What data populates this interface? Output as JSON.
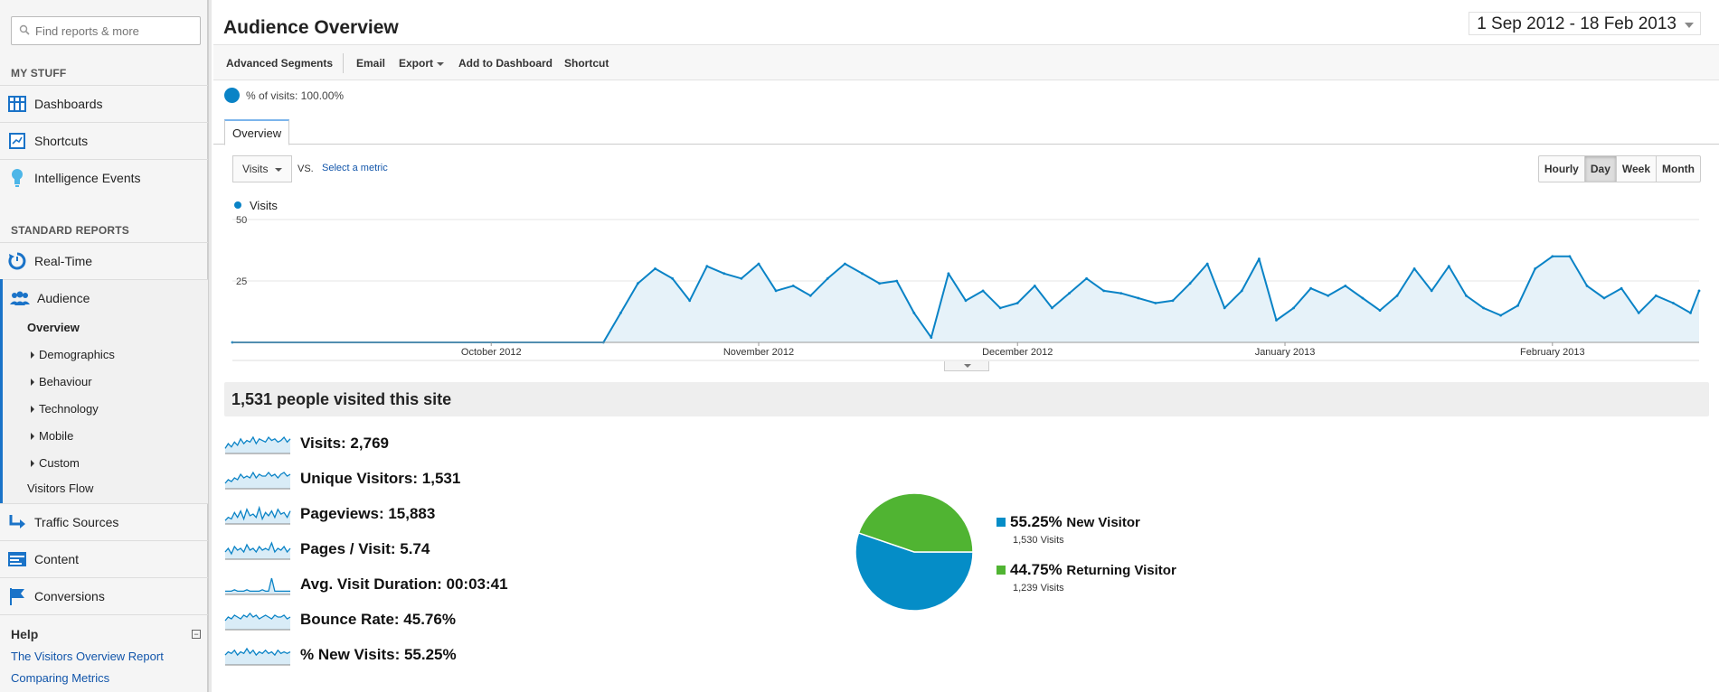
{
  "search": {
    "placeholder": "Find reports & more"
  },
  "sidebar": {
    "my_stuff_heading": "MY STUFF",
    "my_stuff": [
      {
        "label": "Dashboards",
        "icon": "dashboard-grid-icon"
      },
      {
        "label": "Shortcuts",
        "icon": "shortcut-icon"
      },
      {
        "label": "Intelligence Events",
        "icon": "lightbulb-icon"
      }
    ],
    "standard_heading": "STANDARD REPORTS",
    "realtime": {
      "label": "Real-Time",
      "icon": "realtime-clock-icon"
    },
    "audience": {
      "label": "Audience",
      "icon": "audience-people-icon",
      "overview": "Overview",
      "children": [
        "Demographics",
        "Behaviour",
        "Technology",
        "Mobile",
        "Custom"
      ],
      "visitors_flow": "Visitors Flow"
    },
    "traffic_sources": {
      "label": "Traffic Sources",
      "icon": "traffic-arrow-icon"
    },
    "content": {
      "label": "Content",
      "icon": "content-page-icon"
    },
    "conversions": {
      "label": "Conversions",
      "icon": "flag-icon"
    },
    "help": {
      "heading": "Help",
      "toggle": "−",
      "links": [
        "The Visitors Overview Report",
        "Comparing Metrics"
      ]
    }
  },
  "header": {
    "title": "Audience Overview",
    "date_range": "1 Sep 2012 - 18 Feb 2013"
  },
  "toolbar": {
    "advanced_segments": "Advanced Segments",
    "email": "Email",
    "export": "Export",
    "add_to_dashboard": "Add to Dashboard",
    "shortcut": "Shortcut"
  },
  "segment": {
    "label": "% of visits: 100.00%"
  },
  "tabs": {
    "overview": "Overview"
  },
  "controls": {
    "metric": "Visits",
    "vs": "VS.",
    "select_metric": "Select a metric",
    "granularity": [
      "Hourly",
      "Day",
      "Week",
      "Month"
    ],
    "active_granularity": "Day"
  },
  "colors": {
    "line": "#0a83c6",
    "area": "#e6f2f9",
    "new_visitor": "#058dc7",
    "returning_visitor": "#50b432"
  },
  "chart_data": {
    "type": "area",
    "series": [
      {
        "name": "Visits"
      }
    ],
    "yticks": [
      25,
      50
    ],
    "ylim": [
      0,
      50
    ],
    "xlim": [
      "2012-09-01",
      "2013-02-18"
    ],
    "xticks": [
      {
        "date": "2012-10-01",
        "label": "October 2012"
      },
      {
        "date": "2012-11-01",
        "label": "November 2012"
      },
      {
        "date": "2012-12-01",
        "label": "December 2012"
      },
      {
        "date": "2013-01-01",
        "label": "January 2013"
      },
      {
        "date": "2013-02-01",
        "label": "February 2013"
      }
    ],
    "points": [
      [
        "2012-09-01",
        0
      ],
      [
        "2012-10-14",
        0
      ],
      [
        "2012-10-16",
        12
      ],
      [
        "2012-10-18",
        24
      ],
      [
        "2012-10-20",
        30
      ],
      [
        "2012-10-22",
        26
      ],
      [
        "2012-10-24",
        17
      ],
      [
        "2012-10-26",
        31
      ],
      [
        "2012-10-28",
        28
      ],
      [
        "2012-10-30",
        26
      ],
      [
        "2012-11-01",
        32
      ],
      [
        "2012-11-03",
        21
      ],
      [
        "2012-11-05",
        23
      ],
      [
        "2012-11-07",
        19
      ],
      [
        "2012-11-09",
        26
      ],
      [
        "2012-11-11",
        32
      ],
      [
        "2012-11-13",
        28
      ],
      [
        "2012-11-15",
        24
      ],
      [
        "2012-11-17",
        25
      ],
      [
        "2012-11-19",
        12
      ],
      [
        "2012-11-21",
        2
      ],
      [
        "2012-11-23",
        28
      ],
      [
        "2012-11-25",
        17
      ],
      [
        "2012-11-27",
        21
      ],
      [
        "2012-11-29",
        14
      ],
      [
        "2012-12-01",
        16
      ],
      [
        "2012-12-03",
        23
      ],
      [
        "2012-12-05",
        14
      ],
      [
        "2012-12-07",
        20
      ],
      [
        "2012-12-09",
        26
      ],
      [
        "2012-12-11",
        21
      ],
      [
        "2012-12-13",
        20
      ],
      [
        "2012-12-15",
        18
      ],
      [
        "2012-12-17",
        16
      ],
      [
        "2012-12-19",
        17
      ],
      [
        "2012-12-21",
        24
      ],
      [
        "2012-12-23",
        32
      ],
      [
        "2012-12-25",
        14
      ],
      [
        "2012-12-27",
        21
      ],
      [
        "2012-12-29",
        34
      ],
      [
        "2012-12-31",
        9
      ],
      [
        "2013-01-02",
        14
      ],
      [
        "2013-01-04",
        22
      ],
      [
        "2013-01-06",
        19
      ],
      [
        "2013-01-08",
        23
      ],
      [
        "2013-01-10",
        18
      ],
      [
        "2013-01-12",
        13
      ],
      [
        "2013-01-14",
        19
      ],
      [
        "2013-01-16",
        30
      ],
      [
        "2013-01-18",
        21
      ],
      [
        "2013-01-20",
        31
      ],
      [
        "2013-01-22",
        19
      ],
      [
        "2013-01-24",
        14
      ],
      [
        "2013-01-26",
        11
      ],
      [
        "2013-01-28",
        15
      ],
      [
        "2013-01-30",
        30
      ],
      [
        "2013-02-01",
        35
      ],
      [
        "2013-02-03",
        35
      ],
      [
        "2013-02-05",
        23
      ],
      [
        "2013-02-07",
        18
      ],
      [
        "2013-02-09",
        22
      ],
      [
        "2013-02-11",
        12
      ],
      [
        "2013-02-13",
        19
      ],
      [
        "2013-02-15",
        16
      ],
      [
        "2013-02-17",
        12
      ],
      [
        "2013-02-18",
        21
      ]
    ]
  },
  "summary": {
    "headline": "1,531 people visited this site"
  },
  "metrics": [
    {
      "label": "Visits: 2,769",
      "spark": [
        2,
        5,
        3,
        6,
        4,
        8,
        5,
        7,
        6,
        9,
        5,
        8,
        7,
        6,
        9,
        7,
        8,
        6,
        7,
        9,
        6,
        8
      ]
    },
    {
      "label": "Unique Visitors: 1,531",
      "spark": [
        2,
        4,
        3,
        5,
        4,
        7,
        5,
        6,
        5,
        8,
        5,
        7,
        6,
        6,
        8,
        6,
        7,
        5,
        7,
        8,
        6,
        7
      ]
    },
    {
      "label": "Pageviews: 15,883",
      "spark": [
        1,
        3,
        2,
        6,
        3,
        7,
        2,
        8,
        4,
        5,
        3,
        9,
        2,
        6,
        4,
        7,
        3,
        8,
        5,
        6,
        3,
        7
      ]
    },
    {
      "label": "Pages / Visit: 5.74",
      "spark": [
        3,
        5,
        2,
        6,
        4,
        5,
        3,
        7,
        4,
        5,
        3,
        6,
        4,
        5,
        4,
        8,
        3,
        5,
        4,
        6,
        3,
        5
      ]
    },
    {
      "label": "Avg. Visit Duration: 00:03:41",
      "spark": [
        1,
        1,
        1,
        2,
        1,
        1,
        1,
        2,
        1,
        1,
        1,
        1,
        2,
        1,
        1,
        10,
        1,
        1,
        1,
        1,
        1,
        1
      ]
    },
    {
      "label": "Bounce Rate: 45.76%",
      "spark": [
        4,
        6,
        5,
        7,
        6,
        5,
        7,
        6,
        8,
        6,
        7,
        5,
        6,
        7,
        6,
        5,
        7,
        6,
        6,
        7,
        5,
        6
      ]
    },
    {
      "label": "% New Visits: 55.25%",
      "spark": [
        5,
        7,
        6,
        8,
        5,
        7,
        6,
        9,
        6,
        8,
        5,
        7,
        6,
        8,
        6,
        7,
        5,
        8,
        6,
        7,
        6,
        7
      ]
    }
  ],
  "pie": {
    "slices": [
      {
        "name": "New Visitor",
        "percent": "55.25%",
        "value": 55.25,
        "visits": "1,530 Visits",
        "color": "#058dc7"
      },
      {
        "name": "Returning Visitor",
        "percent": "44.75%",
        "value": 44.75,
        "visits": "1,239 Visits",
        "color": "#50b432"
      }
    ]
  }
}
